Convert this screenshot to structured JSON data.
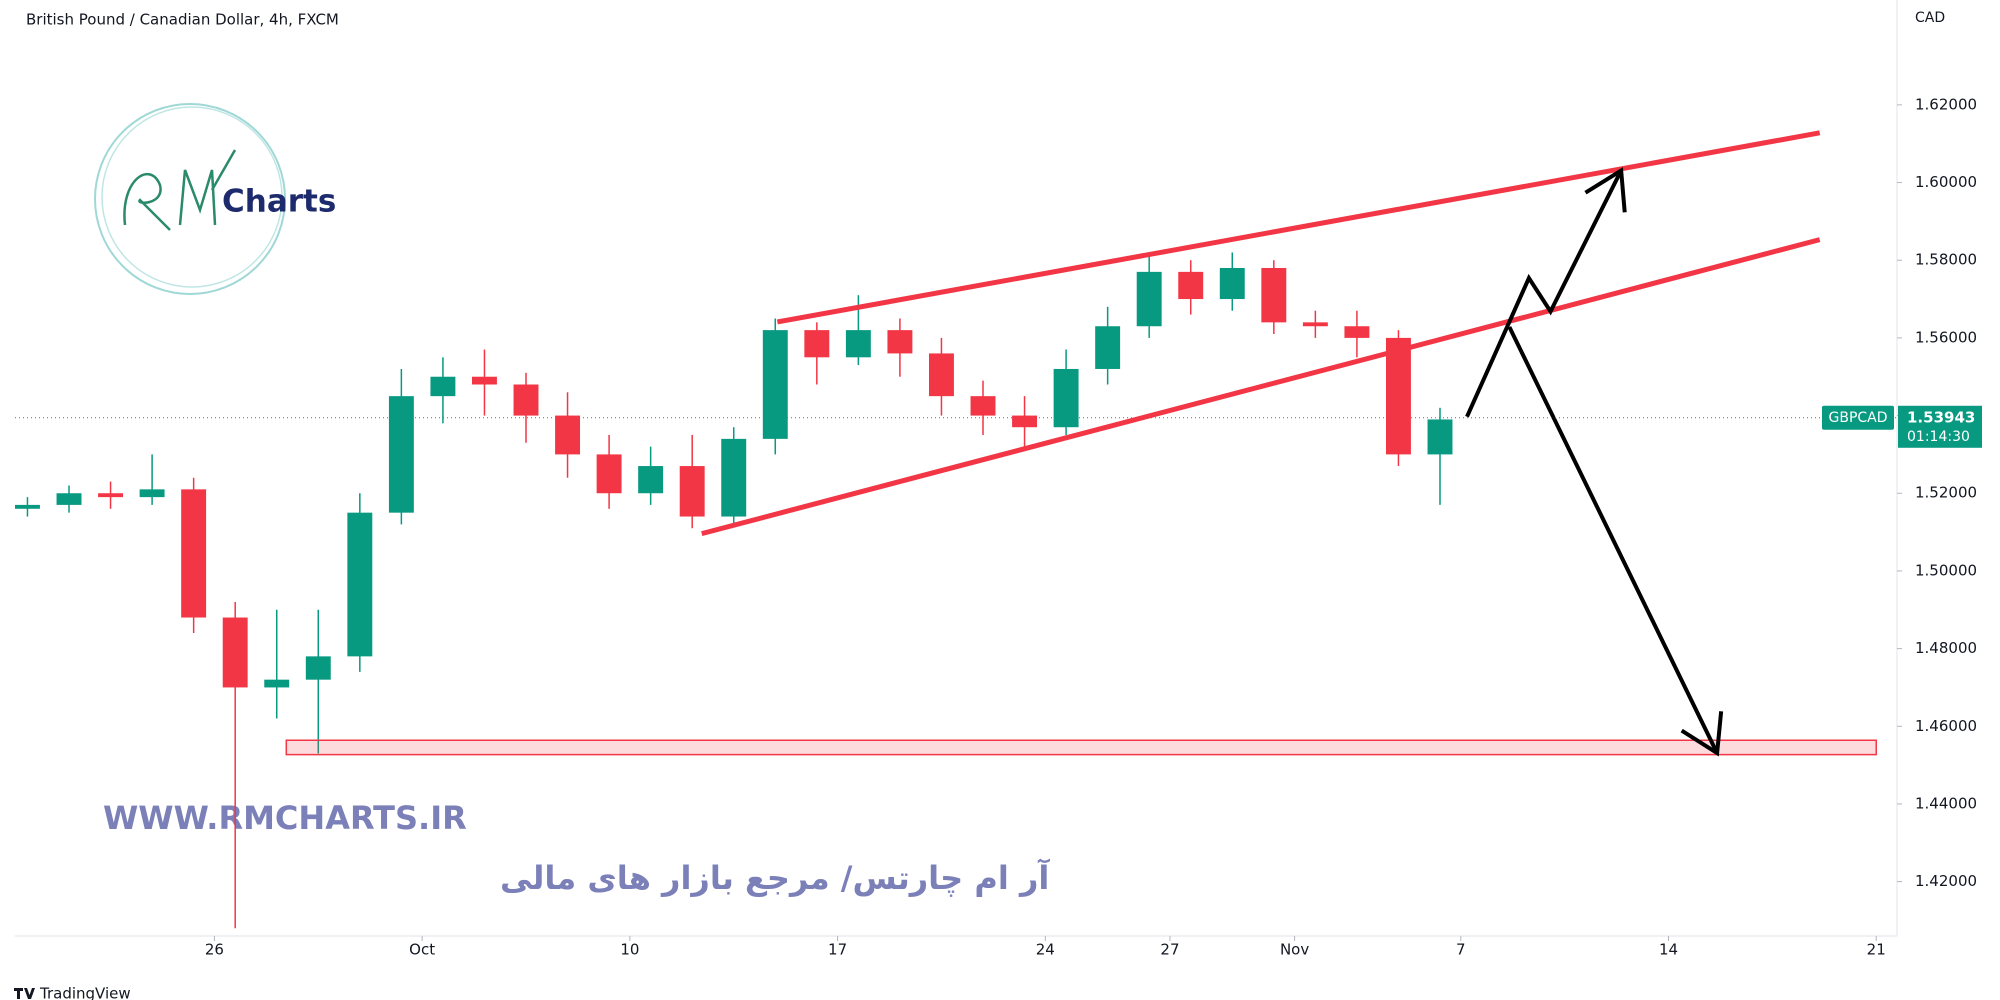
{
  "chart_data": {
    "type": "candlestick",
    "title": "British Pound / Canadian Dollar, 4h, FXCM",
    "currency": "CAD",
    "symbol": "GBPCAD",
    "last_price": 1.53943,
    "countdown": "01:14:30",
    "up_color": "#089981",
    "down_color": "#f23645",
    "xlim": [
      -4.8,
      40.5
    ],
    "ylim": [
      1.406,
      1.647
    ],
    "xticks": [
      {
        "value": 0,
        "label": "26"
      },
      {
        "value": 5,
        "label": "Oct"
      },
      {
        "value": 10,
        "label": "10"
      },
      {
        "value": 15,
        "label": "17"
      },
      {
        "value": 20,
        "label": "24"
      },
      {
        "value": 23,
        "label": "27"
      },
      {
        "value": 26,
        "label": "Nov"
      },
      {
        "value": 30,
        "label": "7"
      },
      {
        "value": 35,
        "label": "14"
      },
      {
        "value": 40,
        "label": "21"
      }
    ],
    "yticks": [
      {
        "value": 1.42,
        "label": "1.42000"
      },
      {
        "value": 1.44,
        "label": "1.44000"
      },
      {
        "value": 1.46,
        "label": "1.46000"
      },
      {
        "value": 1.48,
        "label": "1.48000"
      },
      {
        "value": 1.5,
        "label": "1.50000"
      },
      {
        "value": 1.52,
        "label": "1.52000"
      },
      {
        "value": 1.54,
        "label": "1.54000"
      },
      {
        "value": 1.56,
        "label": "1.56000"
      },
      {
        "value": 1.58,
        "label": "1.58000"
      },
      {
        "value": 1.6,
        "label": "1.60000"
      },
      {
        "value": 1.62,
        "label": "1.62000"
      }
    ],
    "x": [
      -4.5,
      -3.5,
      -2.5,
      -1.5,
      -0.5,
      0.5,
      1.5,
      2.5,
      3.5,
      4.5,
      5.5,
      6.5,
      7.5,
      8.5,
      9.5,
      10.5,
      11.5,
      12.5,
      13.5,
      14.5,
      15.5,
      16.5,
      17.5,
      18.5,
      19.5,
      20.5,
      21.5,
      22.5,
      23.5,
      24.5,
      25.5,
      26.5,
      27.5,
      28.5,
      29.5
    ],
    "open": [
      1.516,
      1.517,
      1.52,
      1.519,
      1.521,
      1.488,
      1.47,
      1.472,
      1.478,
      1.515,
      1.545,
      1.55,
      1.548,
      1.54,
      1.53,
      1.52,
      1.527,
      1.514,
      1.534,
      1.562,
      1.555,
      1.562,
      1.556,
      1.545,
      1.54,
      1.537,
      1.552,
      1.563,
      1.577,
      1.57,
      1.578,
      1.564,
      1.563,
      1.56,
      1.53
    ],
    "high": [
      1.519,
      1.522,
      1.523,
      1.53,
      1.524,
      1.492,
      1.49,
      1.49,
      1.52,
      1.552,
      1.555,
      1.557,
      1.551,
      1.546,
      1.535,
      1.532,
      1.535,
      1.537,
      1.565,
      1.564,
      1.571,
      1.565,
      1.56,
      1.549,
      1.545,
      1.557,
      1.568,
      1.581,
      1.58,
      1.582,
      1.58,
      1.567,
      1.567,
      1.562,
      1.542
    ],
    "low": [
      1.514,
      1.515,
      1.516,
      1.517,
      1.484,
      1.408,
      1.462,
      1.453,
      1.474,
      1.512,
      1.538,
      1.54,
      1.533,
      1.524,
      1.516,
      1.517,
      1.511,
      1.512,
      1.53,
      1.548,
      1.553,
      1.55,
      1.54,
      1.535,
      1.531,
      1.535,
      1.548,
      1.56,
      1.566,
      1.567,
      1.561,
      1.56,
      1.555,
      1.527,
      1.517
    ],
    "close": [
      1.517,
      1.52,
      1.519,
      1.521,
      1.488,
      1.47,
      1.472,
      1.478,
      1.515,
      1.545,
      1.55,
      1.548,
      1.54,
      1.53,
      1.52,
      1.527,
      1.514,
      1.534,
      1.562,
      1.555,
      1.562,
      1.556,
      1.545,
      1.54,
      1.537,
      1.552,
      1.563,
      1.577,
      1.57,
      1.578,
      1.564,
      1.563,
      1.56,
      1.53,
      1.539
    ],
    "trend_lines": [
      {
        "color": "#f23645",
        "x": [
          13.55,
          38.64
        ],
        "y": [
          1.5641,
          1.6128
        ]
      },
      {
        "color": "#f23645",
        "x": [
          11.73,
          38.64
        ],
        "y": [
          1.5096,
          1.5853
        ]
      }
    ],
    "zone": {
      "color": "#f23645",
      "x": [
        1.73,
        40
      ],
      "y": [
        1.4527,
        1.4564
      ]
    },
    "arrows": [
      {
        "color": "#000000",
        "x": [
          30.15,
          31.64,
          32.16,
          33.86
        ],
        "y": [
          1.5397,
          1.5754,
          1.5668,
          1.6031
        ]
      },
      {
        "color": "#000000",
        "x": [
          31.17,
          36.17
        ],
        "y": [
          1.5628,
          1.4531
        ]
      }
    ]
  },
  "logo": {
    "text": "Charts"
  },
  "watermark": {
    "url": "WWW.RMCHARTS.IR",
    "tagline": "آر ام چارتس/ مرجع بازار های مالی"
  },
  "footer": {
    "brand": "TradingView"
  }
}
